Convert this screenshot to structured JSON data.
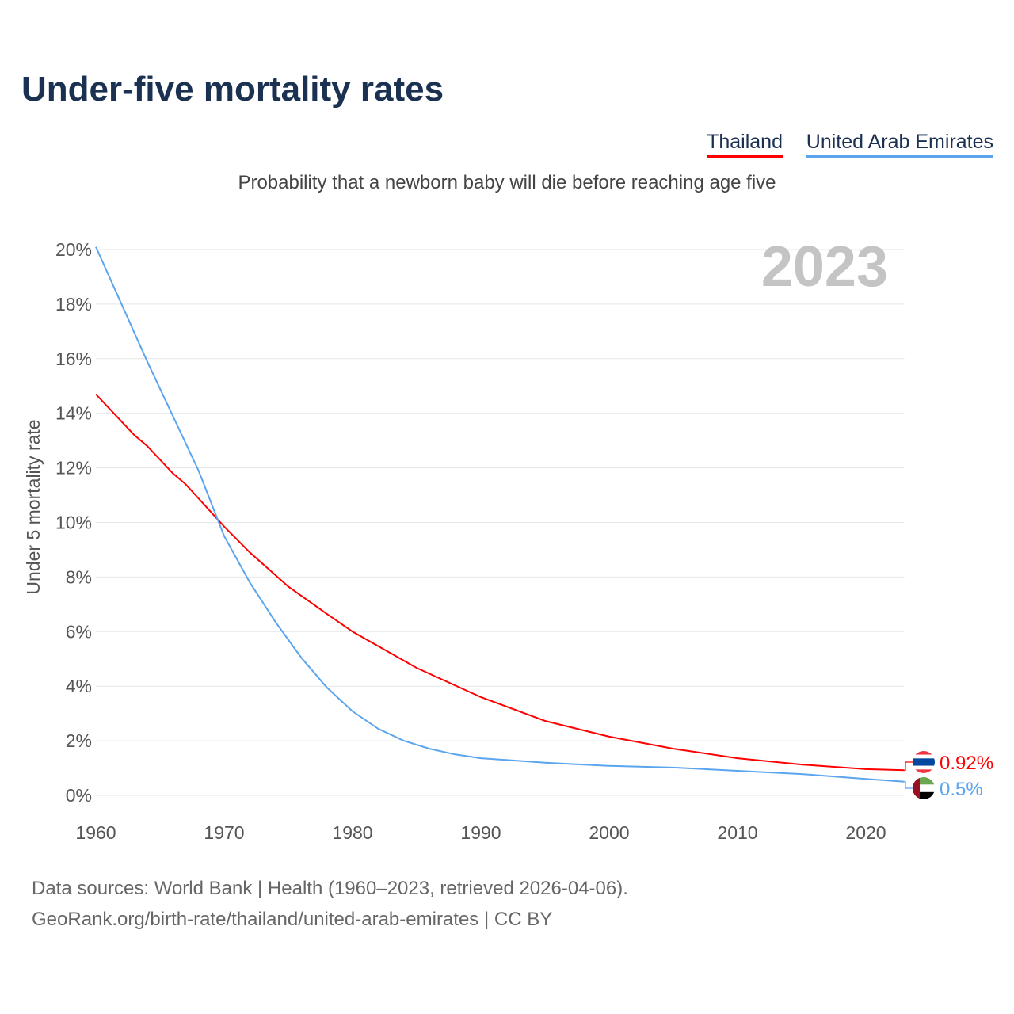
{
  "title": "Under-five mortality rates",
  "subtitle": "Probability that a newborn baby will die before reaching age five",
  "sources": [
    "Data sources: World Bank | Health (1960–2023, retrieved 2026-04-06).",
    "GeoRank.org/birth-rate/thailand/united-arab-emirates | CC BY"
  ],
  "chart_data": {
    "type": "line",
    "title": "Under-five mortality rates",
    "ylabel": "Under 5 mortality rate",
    "xlabel": "",
    "year_label": "2023",
    "xlim": [
      1960,
      2023
    ],
    "ylim": [
      0,
      20
    ],
    "xticks": [
      "1960",
      "1970",
      "1980",
      "1990",
      "2000",
      "2010",
      "2020"
    ],
    "yticks": [
      "0%",
      "2%",
      "4%",
      "6%",
      "8%",
      "10%",
      "12%",
      "14%",
      "16%",
      "18%",
      "20%"
    ],
    "legend_position": "top-right",
    "series": [
      {
        "name": "Thailand",
        "color": "#ff0000",
        "end_label": "0.92%",
        "x": [
          1960,
          1963,
          1964,
          1966,
          1967,
          1970,
          1972,
          1975,
          1978,
          1980,
          1985,
          1990,
          1995,
          2000,
          2005,
          2010,
          2015,
          2020,
          2023
        ],
        "y": [
          14.7,
          13.2,
          12.8,
          11.8,
          11.4,
          9.85,
          8.9,
          7.65,
          6.65,
          6.0,
          4.67,
          3.6,
          2.73,
          2.15,
          1.71,
          1.36,
          1.13,
          0.96,
          0.92
        ]
      },
      {
        "name": "United Arab Emirates",
        "color": "#5aa5ee",
        "end_label": "0.5%",
        "x": [
          1960,
          1962,
          1964,
          1966,
          1968,
          1970,
          1972,
          1974,
          1976,
          1978,
          1980,
          1982,
          1984,
          1986,
          1988,
          1990,
          1995,
          2000,
          2005,
          2010,
          2015,
          2020,
          2023
        ],
        "y": [
          20.1,
          18.0,
          15.9,
          13.9,
          11.9,
          9.5,
          7.8,
          6.35,
          5.05,
          3.95,
          3.08,
          2.44,
          2.0,
          1.71,
          1.5,
          1.36,
          1.2,
          1.08,
          1.02,
          0.9,
          0.78,
          0.6,
          0.5
        ]
      }
    ]
  }
}
